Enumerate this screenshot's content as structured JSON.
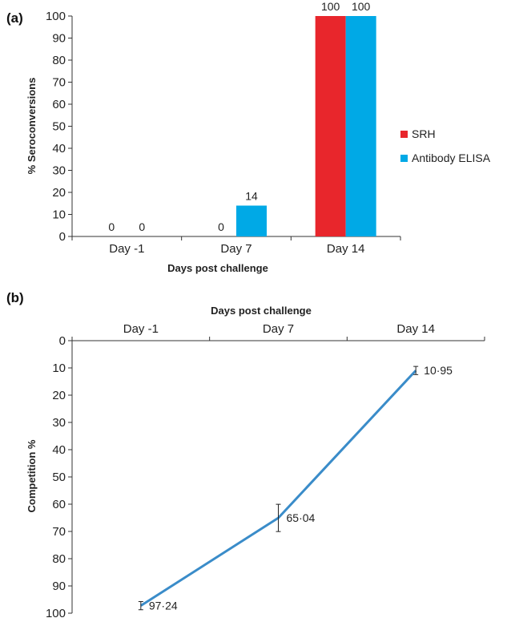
{
  "chart_data": [
    {
      "panel_label": "(a)",
      "type": "bar",
      "categories": [
        "Day -1",
        "Day 7",
        "Day 14"
      ],
      "series": [
        {
          "name": "SRH",
          "values": [
            0,
            0,
            100
          ],
          "color": "#e8262c"
        },
        {
          "name": "Antibody ELISA",
          "values": [
            0,
            14,
            100
          ],
          "color": "#00a9e6"
        }
      ],
      "title": "",
      "xlabel": "Days post challenge",
      "ylabel": "% Seroconversions",
      "ylim": [
        0,
        100
      ],
      "yticks": [
        0,
        10,
        20,
        30,
        40,
        50,
        60,
        70,
        80,
        90,
        100
      ],
      "legend_position": "right",
      "grid": false
    },
    {
      "panel_label": "(b)",
      "type": "line",
      "categories": [
        "Day -1",
        "Day 7",
        "Day 14"
      ],
      "series": [
        {
          "values": [
            97.24,
            65.04,
            10.95
          ],
          "labels": [
            "97·24",
            "65·04",
            "10·95"
          ],
          "error": [
            1.5,
            5,
            1.5
          ],
          "color": "#3a8cc9"
        }
      ],
      "title": "",
      "xlabel": "Days post challenge",
      "xaxis_position": "top",
      "ylabel": "Competition %",
      "ylim": [
        0,
        100
      ],
      "y_inverted": true,
      "yticks": [
        0,
        10,
        20,
        30,
        40,
        50,
        60,
        70,
        80,
        90,
        100
      ],
      "grid": false
    }
  ]
}
